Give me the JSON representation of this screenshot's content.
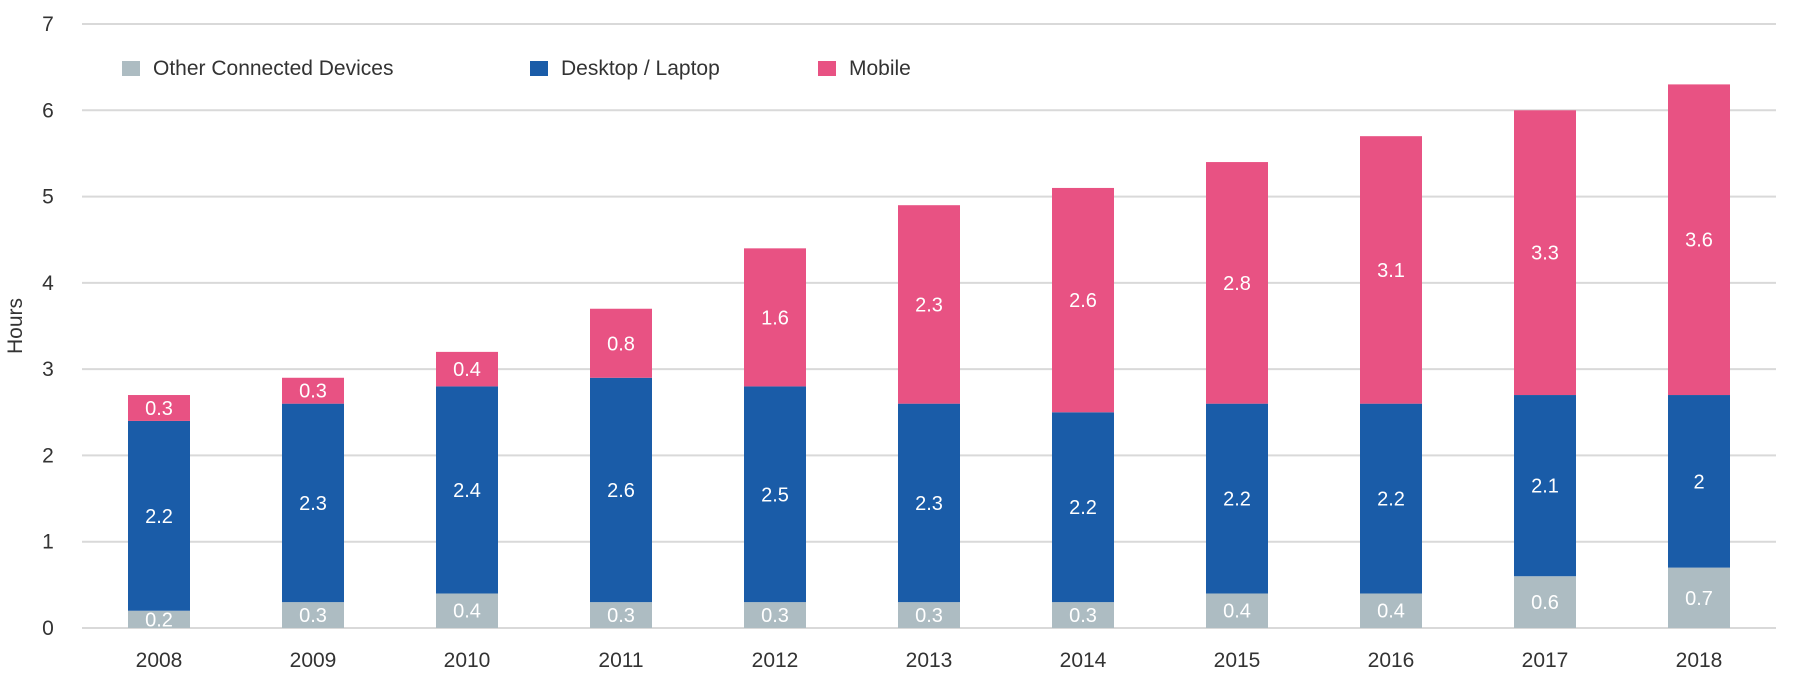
{
  "chart_data": {
    "type": "bar",
    "stacked": true,
    "categories": [
      "2008",
      "2009",
      "2010",
      "2011",
      "2012",
      "2013",
      "2014",
      "2015",
      "2016",
      "2017",
      "2018"
    ],
    "series": [
      {
        "name": "Other Connected Devices",
        "color": "#adbcc2",
        "values": [
          0.2,
          0.3,
          0.4,
          0.3,
          0.3,
          0.3,
          0.3,
          0.4,
          0.4,
          0.6,
          0.7
        ]
      },
      {
        "name": "Desktop / Laptop",
        "color": "#1a5ca8",
        "values": [
          2.2,
          2.3,
          2.4,
          2.6,
          2.5,
          2.3,
          2.2,
          2.2,
          2.2,
          2.1,
          2
        ]
      },
      {
        "name": "Mobile",
        "color": "#e85283",
        "values": [
          0.3,
          0.3,
          0.4,
          0.8,
          1.6,
          2.3,
          2.6,
          2.8,
          3.1,
          3.3,
          3.6
        ]
      }
    ],
    "ylabel": "Hours",
    "xlabel": "",
    "ylim": [
      0,
      7
    ],
    "yticks": [
      "0",
      "1",
      "2",
      "3",
      "4",
      "5",
      "6",
      "7"
    ],
    "grid": true,
    "legend_position": "top-left"
  }
}
